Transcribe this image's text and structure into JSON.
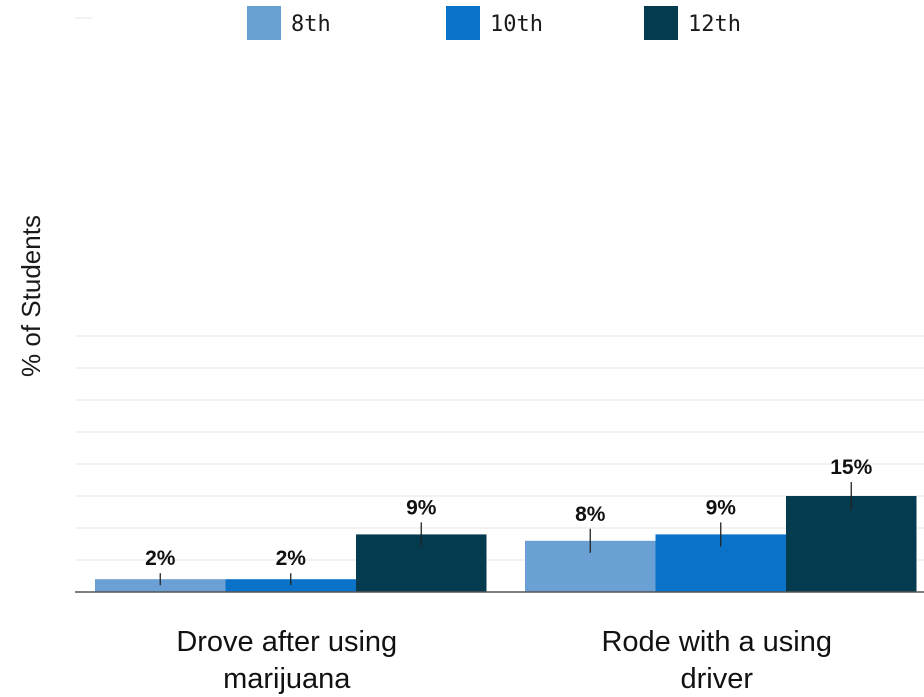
{
  "chart_data": {
    "type": "bar",
    "title": "",
    "ylabel": "% of Students",
    "xlabel": "",
    "ylim": [
      0,
      40
    ],
    "grid": true,
    "legend_position": "top",
    "categories": [
      [
        "Drove after using",
        "marijuana"
      ],
      [
        "Rode with a using",
        "driver"
      ]
    ],
    "series": [
      {
        "name": "8th",
        "color": "#6aa0d4",
        "values": [
          2,
          8
        ],
        "labels": [
          "2%",
          "8%"
        ]
      },
      {
        "name": "10th",
        "color": "#0b72c9",
        "values": [
          2,
          9
        ],
        "labels": [
          "2%",
          "9%"
        ]
      },
      {
        "name": "12th",
        "color": "#053b4f",
        "values": [
          9,
          15
        ],
        "labels": [
          "9%",
          "15%"
        ]
      }
    ]
  }
}
